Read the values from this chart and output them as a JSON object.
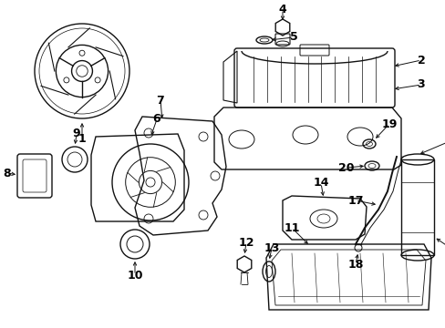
{
  "bg_color": "#ffffff",
  "line_color": "#111111",
  "label_color": "#000000",
  "figsize": [
    4.89,
    3.6
  ],
  "dpi": 100
}
